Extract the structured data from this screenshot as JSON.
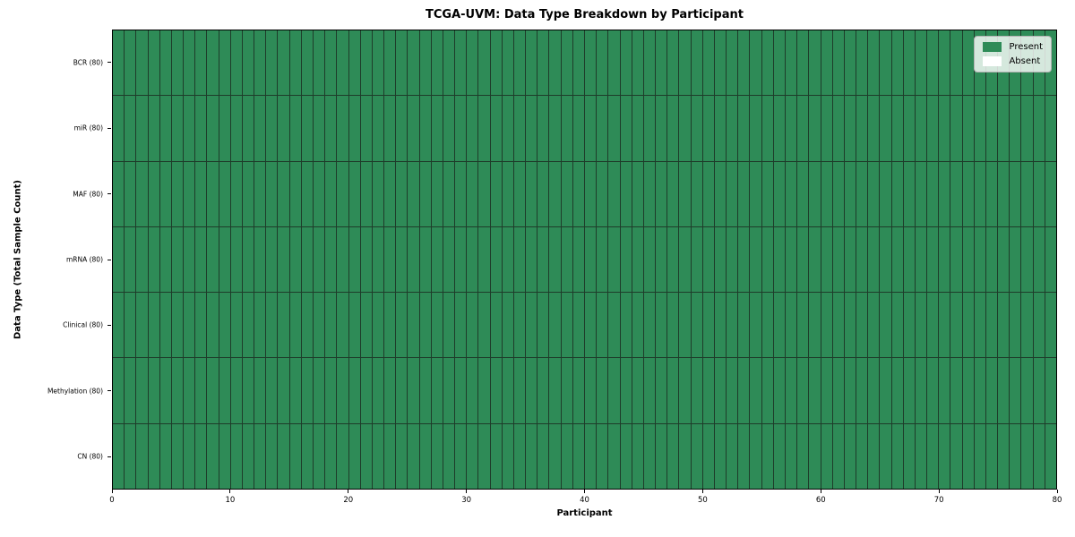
{
  "chart_data": {
    "type": "heatmap",
    "title": "TCGA-UVM: Data Type Breakdown by Participant",
    "xlabel": "Participant",
    "ylabel": "Data Type (Total Sample Count)",
    "xlim": [
      0,
      80
    ],
    "x_ticks": [
      0,
      10,
      20,
      30,
      40,
      50,
      60,
      70,
      80
    ],
    "n_participants": 80,
    "rows": [
      {
        "label": "BCR (80)",
        "data_type": "BCR",
        "total": 80,
        "present_count": 80,
        "absent_count": 0
      },
      {
        "label": "miR (80)",
        "data_type": "miR",
        "total": 80,
        "present_count": 80,
        "absent_count": 0
      },
      {
        "label": "MAF (80)",
        "data_type": "MAF",
        "total": 80,
        "present_count": 80,
        "absent_count": 0
      },
      {
        "label": "mRNA (80)",
        "data_type": "mRNA",
        "total": 80,
        "present_count": 80,
        "absent_count": 0
      },
      {
        "label": "Clinical (80)",
        "data_type": "Clinical",
        "total": 80,
        "present_count": 80,
        "absent_count": 0
      },
      {
        "label": "Methylation (80)",
        "data_type": "Methylation",
        "total": 80,
        "present_count": 80,
        "absent_count": 0
      },
      {
        "label": "CN (80)",
        "data_type": "CN",
        "total": 80,
        "present_count": 80,
        "absent_count": 0
      }
    ],
    "all_cells_value": "present",
    "legend": {
      "position": "upper right",
      "entries": [
        {
          "label": "Present",
          "color": "#2e8b57"
        },
        {
          "label": "Absent",
          "color": "#ffffff"
        }
      ]
    },
    "colors": {
      "present": "#2e8b57",
      "absent": "#ffffff",
      "cell_border": "#1e3c2a",
      "spine": "#000000"
    },
    "grid": false
  }
}
